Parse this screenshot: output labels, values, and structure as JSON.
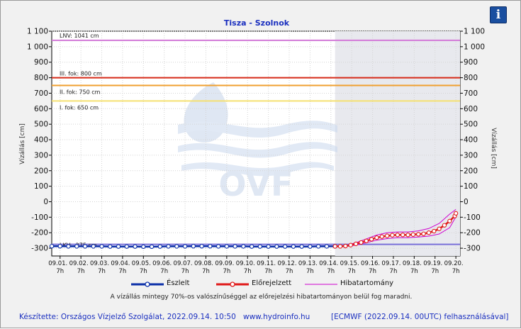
{
  "info_button": {
    "label": "i"
  },
  "legend": [
    {
      "label": "Észlelt",
      "color": "#0a2fa8"
    },
    {
      "label": "Előrejelzett",
      "color": "#e01818"
    },
    {
      "label": "Hibatartomány",
      "color": "#d000d0"
    }
  ],
  "note": "A vízállás mintegy 70%-os valószínűséggel az előrejelzési hibatartományon belül fog maradni.",
  "footer": {
    "made_by": "Készítette: Országos Vízjelző Szolgálat, 2022.09.14. 10:50",
    "website": "www.hydroinfo.hu",
    "model": "[ECMWF (2022.09.14. 00UTC) felhasználásával]"
  },
  "watermark": {
    "text": "OVF"
  },
  "chart_data": {
    "type": "line",
    "title": "Tisza - Szolnok",
    "ylabel_left": "Vízállás [cm]",
    "ylabel_right": "Vízállás [cm]",
    "ylim": [
      -350,
      1100
    ],
    "yticks": [
      {
        "v": 1100,
        "l": "1 100"
      },
      {
        "v": 1000,
        "l": "1 000"
      },
      {
        "v": 900,
        "l": "900"
      },
      {
        "v": 800,
        "l": "800"
      },
      {
        "v": 700,
        "l": "700"
      },
      {
        "v": 600,
        "l": "600"
      },
      {
        "v": 500,
        "l": "500"
      },
      {
        "v": 400,
        "l": "400"
      },
      {
        "v": 300,
        "l": "300"
      },
      {
        "v": 200,
        "l": "200"
      },
      {
        "v": 100,
        "l": "100"
      },
      {
        "v": 0,
        "l": "0"
      },
      {
        "v": -100,
        "l": "-100"
      },
      {
        "v": -200,
        "l": "-200"
      },
      {
        "v": -300,
        "l": "-300"
      }
    ],
    "xlim": [
      0.6,
      20.2
    ],
    "xticks": [
      {
        "day": 1,
        "date": "09.01.",
        "hour": "7h"
      },
      {
        "day": 2,
        "date": "09.02.",
        "hour": "7h"
      },
      {
        "day": 3,
        "date": "09.03.",
        "hour": "7h"
      },
      {
        "day": 4,
        "date": "09.04.",
        "hour": "7h"
      },
      {
        "day": 5,
        "date": "09.05.",
        "hour": "7h"
      },
      {
        "day": 6,
        "date": "09.06.",
        "hour": "7h"
      },
      {
        "day": 7,
        "date": "09.07.",
        "hour": "7h"
      },
      {
        "day": 8,
        "date": "09.08.",
        "hour": "7h"
      },
      {
        "day": 9,
        "date": "09.09.",
        "hour": "7h"
      },
      {
        "day": 10,
        "date": "09.10.",
        "hour": "7h"
      },
      {
        "day": 11,
        "date": "09.11.",
        "hour": "7h"
      },
      {
        "day": 12,
        "date": "09.12.",
        "hour": "7h"
      },
      {
        "day": 13,
        "date": "09.13.",
        "hour": "7h"
      },
      {
        "day": 14,
        "date": "09.14.",
        "hour": "7h"
      },
      {
        "day": 15,
        "date": "09.15.",
        "hour": "7h"
      },
      {
        "day": 16,
        "date": "09.16.",
        "hour": "7h"
      },
      {
        "day": 17,
        "date": "09.17.",
        "hour": "7h"
      },
      {
        "day": 18,
        "date": "09.18.",
        "hour": "7h"
      },
      {
        "day": 19,
        "date": "09.19.",
        "hour": "7h"
      },
      {
        "day": 20,
        "date": "09.20.",
        "hour": "7h"
      }
    ],
    "forecast_start_day": 14.2,
    "reference_lines": [
      {
        "label": "LNV: 1041 cm",
        "value": 1041,
        "color": "#d37ad8"
      },
      {
        "label": "III. fok: 800 cm",
        "value": 800,
        "color": "#d62a18"
      },
      {
        "label": "II. fok: 750 cm",
        "value": 750,
        "color": "#f0a030"
      },
      {
        "label": "I. fok: 650 cm",
        "value": 650,
        "color": "#f5e070"
      },
      {
        "label": "LKV: -275 cm",
        "value": -275,
        "color": "#7a70d8"
      }
    ],
    "observed": {
      "name": "Észlelt",
      "x": [
        0.6,
        1,
        1.4,
        1.8,
        2.2,
        2.6,
        3,
        3.4,
        3.8,
        4.2,
        4.6,
        5,
        5.4,
        5.8,
        6.2,
        6.6,
        7,
        7.4,
        7.8,
        8.2,
        8.6,
        9,
        9.4,
        9.8,
        10.2,
        10.6,
        11,
        11.4,
        11.8,
        12.2,
        12.6,
        13,
        13.4,
        13.8,
        14.2
      ],
      "y": [
        -287,
        -287,
        -288,
        -288,
        -288,
        -288,
        -288,
        -289,
        -289,
        -289,
        -289,
        -290,
        -290,
        -289,
        -288,
        -288,
        -288,
        -287,
        -287,
        -287,
        -288,
        -288,
        -288,
        -288,
        -289,
        -289,
        -289,
        -289,
        -289,
        -289,
        -289,
        -289,
        -288,
        -288,
        -288
      ]
    },
    "forecast": {
      "name": "Előrejelzett",
      "x": [
        14.2,
        14.45,
        14.7,
        14.95,
        15.2,
        15.45,
        15.7,
        15.95,
        16.2,
        16.45,
        16.7,
        16.95,
        17.2,
        17.45,
        17.7,
        17.95,
        18.2,
        18.45,
        18.7,
        18.95,
        19.2,
        19.45,
        19.7,
        19.95,
        20.0
      ],
      "y": [
        -288,
        -288,
        -286,
        -280,
        -272,
        -263,
        -253,
        -242,
        -232,
        -225,
        -220,
        -216,
        -214,
        -214,
        -214,
        -212,
        -210,
        -207,
        -200,
        -190,
        -175,
        -152,
        -125,
        -92,
        -75
      ]
    },
    "error_upper": {
      "name": "Hibatartomány",
      "x": [
        14.2,
        14.7,
        15.2,
        15.7,
        16.2,
        16.7,
        17.2,
        17.7,
        18.2,
        18.7,
        19.2,
        19.7,
        20.0
      ],
      "y": [
        -288,
        -283,
        -264,
        -240,
        -215,
        -200,
        -195,
        -195,
        -188,
        -173,
        -140,
        -80,
        -50
      ]
    },
    "error_lower": {
      "name": "Hibatartomány",
      "x": [
        14.2,
        14.7,
        15.2,
        15.7,
        16.2,
        16.7,
        17.2,
        17.7,
        18.2,
        18.7,
        19.2,
        19.7,
        20.0
      ],
      "y": [
        -288,
        -289,
        -280,
        -265,
        -248,
        -238,
        -232,
        -232,
        -228,
        -222,
        -208,
        -168,
        -98
      ]
    }
  }
}
